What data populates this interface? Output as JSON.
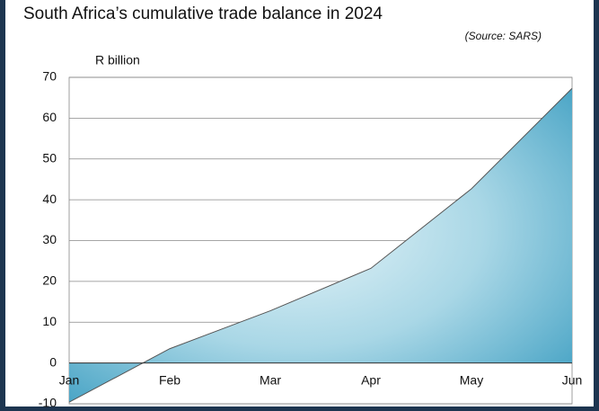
{
  "chart_data": {
    "type": "area",
    "title": "South Africa’s cumulative trade balance in 2024",
    "subtitle": "(Source: SARS)",
    "y_label": "R billion",
    "categories": [
      "Jan",
      "Feb",
      "Mar",
      "Apr",
      "May",
      "Jun"
    ],
    "values": [
      -9.6,
      3.5,
      12.8,
      23.2,
      42.7,
      67.3
    ],
    "color": "#5bb3cf",
    "line_color": "#555555",
    "ylim": [
      -10,
      70
    ],
    "yticks": [
      -10,
      0,
      10,
      20,
      30,
      40,
      50,
      60,
      70
    ],
    "grid": true
  }
}
